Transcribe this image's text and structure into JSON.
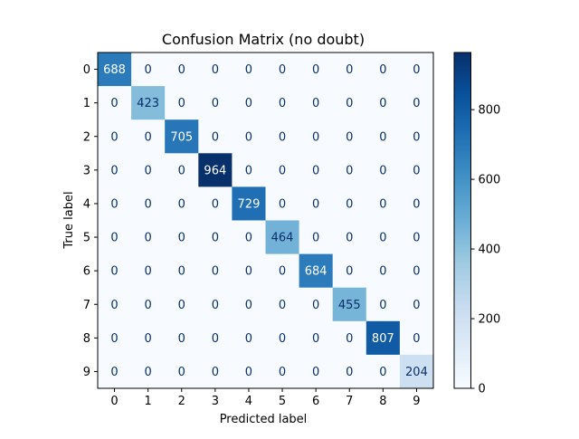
{
  "chart_data": {
    "type": "heatmap",
    "title": "Confusion Matrix (no doubt)",
    "xlabel": "Predicted label",
    "ylabel": "True label",
    "x_categories": [
      "0",
      "1",
      "2",
      "3",
      "4",
      "5",
      "6",
      "7",
      "8",
      "9"
    ],
    "y_categories": [
      "0",
      "1",
      "2",
      "3",
      "4",
      "5",
      "6",
      "7",
      "8",
      "9"
    ],
    "values": [
      [
        688,
        0,
        0,
        0,
        0,
        0,
        0,
        0,
        0,
        0
      ],
      [
        0,
        423,
        0,
        0,
        0,
        0,
        0,
        0,
        0,
        0
      ],
      [
        0,
        0,
        705,
        0,
        0,
        0,
        0,
        0,
        0,
        0
      ],
      [
        0,
        0,
        0,
        964,
        0,
        0,
        0,
        0,
        0,
        0
      ],
      [
        0,
        0,
        0,
        0,
        729,
        0,
        0,
        0,
        0,
        0
      ],
      [
        0,
        0,
        0,
        0,
        0,
        464,
        0,
        0,
        0,
        0
      ],
      [
        0,
        0,
        0,
        0,
        0,
        0,
        684,
        0,
        0,
        0
      ],
      [
        0,
        0,
        0,
        0,
        0,
        0,
        0,
        455,
        0,
        0
      ],
      [
        0,
        0,
        0,
        0,
        0,
        0,
        0,
        0,
        807,
        0
      ],
      [
        0,
        0,
        0,
        0,
        0,
        0,
        0,
        0,
        0,
        204
      ]
    ],
    "colormap": "Blues",
    "color_range": [
      0,
      964
    ],
    "colorbar_ticks": [
      0,
      200,
      400,
      600,
      800
    ],
    "grid": false
  }
}
